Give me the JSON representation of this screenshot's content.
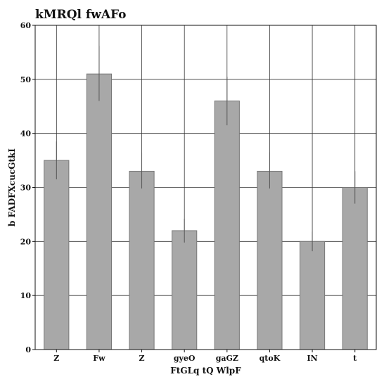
{
  "chart_data": {
    "type": "bar",
    "title": "kMRQl fwAFo",
    "xlabel": "FtGLq tQ WlpF",
    "ylabel": "b FADFXcucGtkI",
    "categories": [
      "Z",
      "Fw",
      "Z",
      "gyeO",
      "gaGZ",
      "qtoK",
      "IN",
      "t"
    ],
    "values": [
      35,
      51,
      33,
      22,
      46,
      33,
      20,
      30
    ],
    "error_low": [
      31.5,
      46,
      29.8,
      19.8,
      41.5,
      29.8,
      18.2,
      27
    ],
    "error_high": [
      38.5,
      56.2,
      36.5,
      24.2,
      50.5,
      36.5,
      21.8,
      33
    ],
    "ylim": [
      0,
      60
    ],
    "yticks": [
      0,
      10,
      20,
      30,
      40,
      50,
      60
    ],
    "grid": true,
    "bar_color": "#a8a8a8",
    "bar_edge_color": "#777777",
    "error_color": "#555555"
  }
}
